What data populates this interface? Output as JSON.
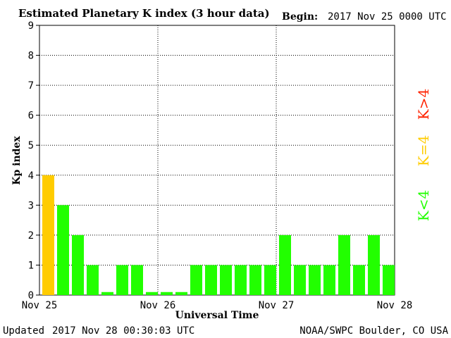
{
  "header": {
    "title": "Estimated Planetary K index (3 hour data)",
    "begin_label": "Begin:",
    "begin_value": "2017 Nov 25 0000 UTC"
  },
  "footer": {
    "updated_label": "Updated",
    "updated_value": "2017 Nov 28 00:30:03 UTC",
    "source": "NOAA/SWPC Boulder, CO USA"
  },
  "legend": {
    "items": [
      {
        "label": "K<4",
        "color": "#22ff00"
      },
      {
        "label": "K=4",
        "color": "#ffcc00"
      },
      {
        "label": "K>4",
        "color": "#ff2200"
      }
    ]
  },
  "chart_data": {
    "type": "bar",
    "title": "Estimated Planetary K index (3 hour data)",
    "xlabel": "Universal Time",
    "ylabel": "Kp index",
    "ylim": [
      0,
      9
    ],
    "yticks": [
      "0",
      "1",
      "2",
      "3",
      "4",
      "5",
      "6",
      "7",
      "8",
      "9"
    ],
    "xticks": [
      "Nov 25",
      "Nov 26",
      "Nov 27",
      "Nov 28"
    ],
    "grid": true,
    "legend_placement": "right",
    "categories": [
      "Nov 25 00",
      "Nov 25 03",
      "Nov 25 06",
      "Nov 25 09",
      "Nov 25 12",
      "Nov 25 15",
      "Nov 25 18",
      "Nov 25 21",
      "Nov 26 00",
      "Nov 26 03",
      "Nov 26 06",
      "Nov 26 09",
      "Nov 26 12",
      "Nov 26 15",
      "Nov 26 18",
      "Nov 26 21",
      "Nov 27 00",
      "Nov 27 03",
      "Nov 27 06",
      "Nov 27 09",
      "Nov 27 12",
      "Nov 27 15",
      "Nov 27 18",
      "Nov 27 21"
    ],
    "values": [
      4,
      3,
      2,
      1,
      0,
      1,
      1,
      0,
      0,
      0,
      1,
      1,
      1,
      1,
      1,
      1,
      2,
      1,
      1,
      1,
      2,
      1,
      2,
      1
    ],
    "colors": {
      "below4": "#22ff00",
      "eq4": "#ffcc00",
      "above4": "#ff2200"
    }
  }
}
